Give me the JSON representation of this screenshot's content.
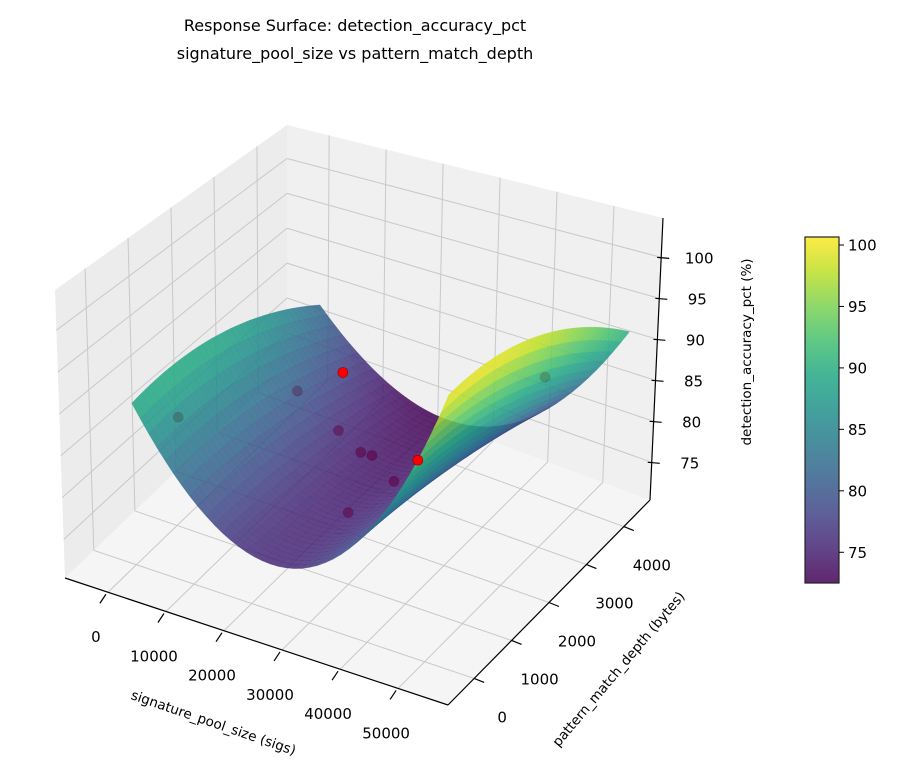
{
  "chart_data": {
    "type": "surface",
    "title_lines": [
      "Response Surface: detection_accuracy_pct",
      "signature_pool_size vs pattern_match_depth"
    ],
    "xlabel": "signature_pool_size (sigs)",
    "ylabel": "pattern_match_depth (bytes)",
    "zlabel": "detection_accuracy_pct (%)",
    "xlim": [
      -7400,
      58600
    ],
    "ylim": [
      -700,
      4700
    ],
    "zlim": [
      70.4,
      104.8
    ],
    "xticks": [
      0,
      10000,
      20000,
      30000,
      40000,
      50000
    ],
    "yticks": [
      0,
      1000,
      2000,
      3000,
      4000
    ],
    "zticks": [
      75,
      80,
      85,
      90,
      95,
      100
    ],
    "grid": true,
    "colormap": "viridis",
    "colorbar": {
      "min": 72.5,
      "max": 100.65,
      "ticks": [
        75,
        80,
        85,
        90,
        95,
        100
      ],
      "placement": "right"
    },
    "surface": {
      "x": [
        0,
        27500,
        55000
      ],
      "y": [
        0,
        2250,
        4500
      ],
      "z_grid": [
        [
          89.8,
          76.0,
          100.0
        ],
        [
          89.2,
          75.0,
          99.0
        ],
        [
          82.0,
          72.8,
          91.0
        ]
      ],
      "alpha": 0.85
    },
    "points": [
      {
        "x": 3200,
        "y": 650,
        "z": 86.0
      },
      {
        "x": 7000,
        "y": 3000,
        "z": 79.5
      },
      {
        "x": 17750,
        "y": 2630,
        "z": 86.0
      },
      {
        "x": 12500,
        "y": 3250,
        "z": 74.5
      },
      {
        "x": 16500,
        "y": 3250,
        "z": 72.7
      },
      {
        "x": 18500,
        "y": 3250,
        "z": 72.8
      },
      {
        "x": 23500,
        "y": 3100,
        "z": 71.5
      },
      {
        "x": 29200,
        "y": 2890,
        "z": 76.5
      },
      {
        "x": 24500,
        "y": 1800,
        "z": 74.0
      },
      {
        "x": 51200,
        "y": 2920,
        "z": 91.0
      }
    ],
    "point_color": "#ff0000"
  }
}
